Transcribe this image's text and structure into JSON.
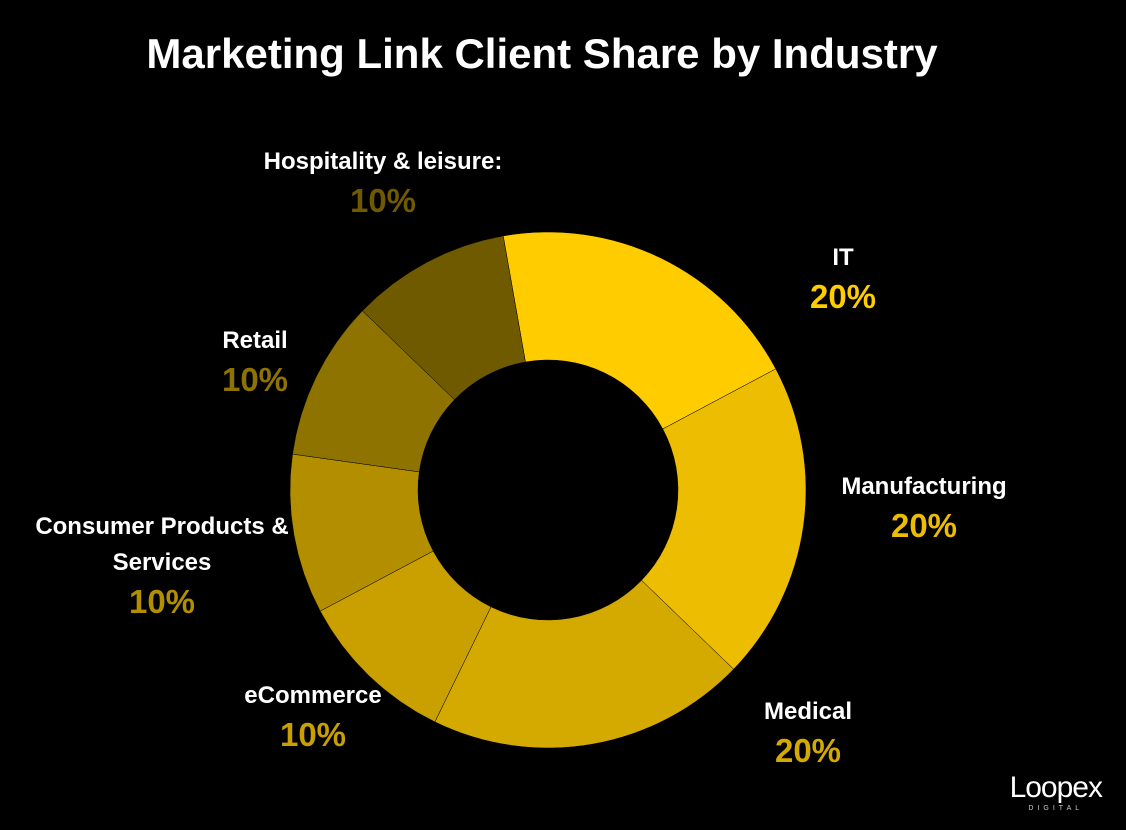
{
  "chart_data": {
    "type": "donut",
    "title": "Marketing Link Client Share by Industry",
    "categories": [
      "IT",
      "Manufacturing",
      "Medical",
      "eCommerce",
      "Consumer Products & Services",
      "Retail",
      "Hospitality & leisure:"
    ],
    "values": [
      20,
      20,
      20,
      10,
      10,
      10,
      10
    ],
    "value_labels": [
      "20%",
      "20%",
      "20%",
      "10%",
      "10%",
      "10%",
      "10%"
    ],
    "colors": [
      "#ffcc00",
      "#ecbd00",
      "#d5aa00",
      "#c9a000",
      "#b38f00",
      "#8f7300",
      "#705a00"
    ]
  },
  "logo": {
    "name": "Loopex",
    "tagline": "DIGITAL"
  }
}
